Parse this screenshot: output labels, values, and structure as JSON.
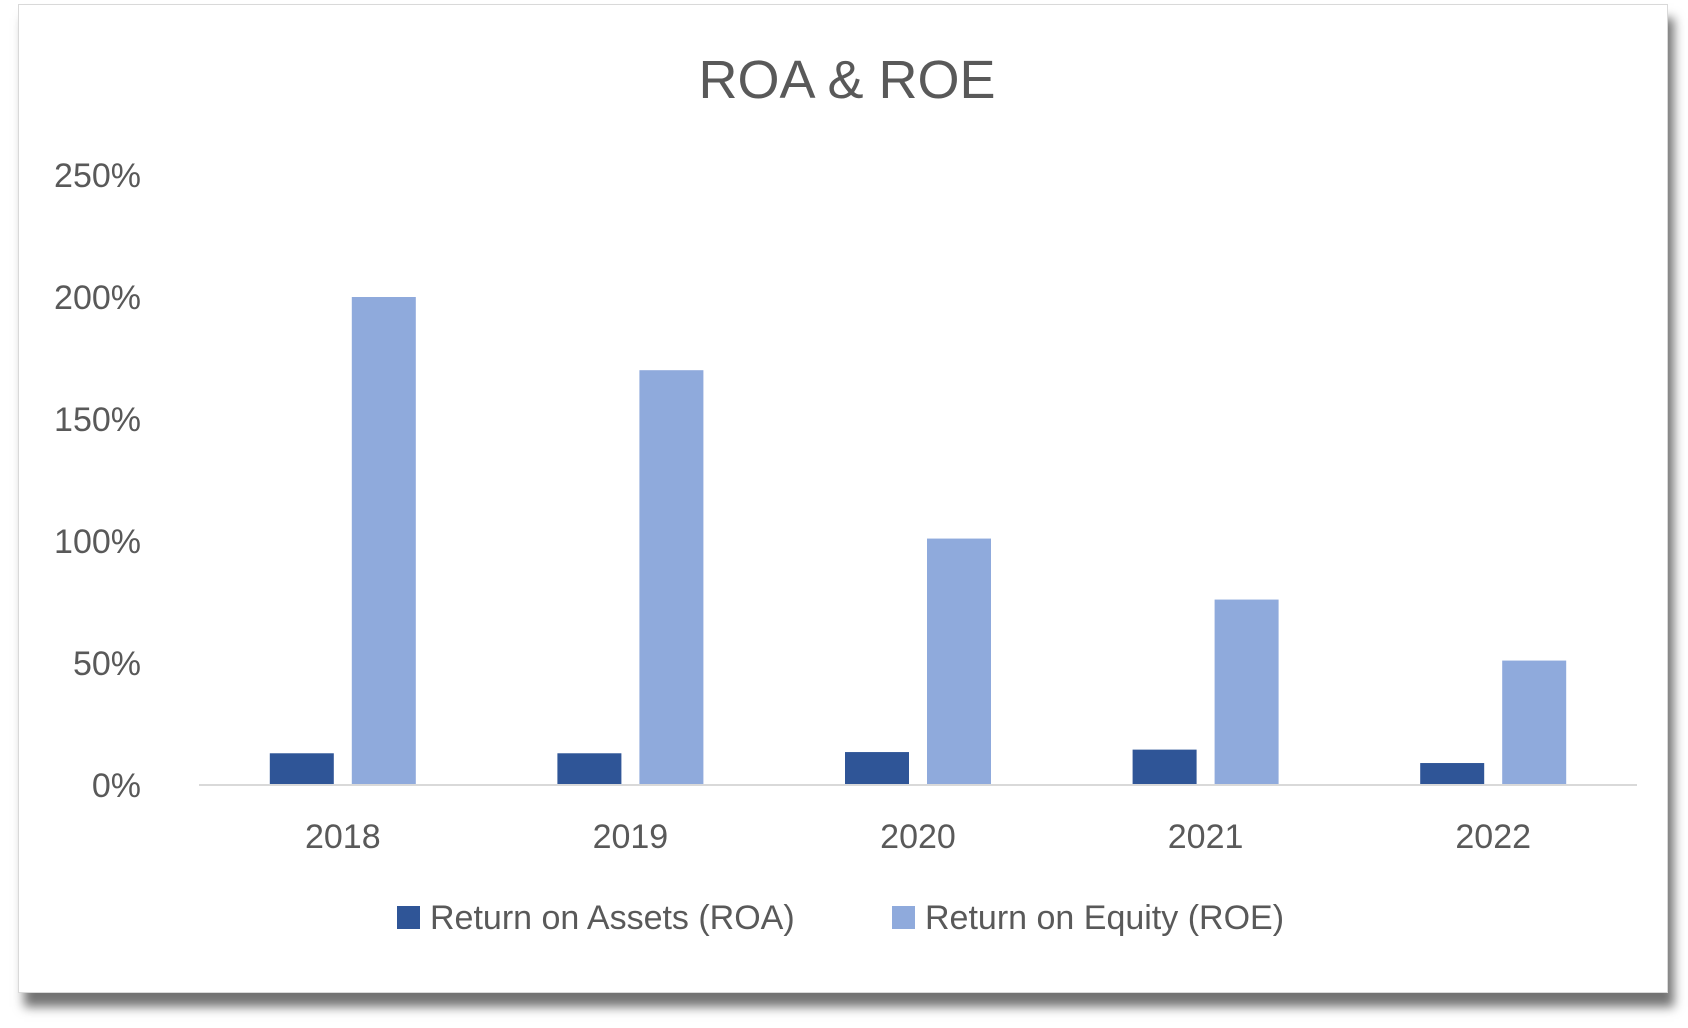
{
  "chart_data": {
    "type": "bar",
    "title": "ROA & ROE",
    "xlabel": "",
    "ylabel": "",
    "categories": [
      "2018",
      "2019",
      "2020",
      "2021",
      "2022"
    ],
    "series": [
      {
        "name": "Return on Assets (ROA)",
        "values": [
          13,
          13,
          13.5,
          14.5,
          9
        ],
        "color": "#2F5597"
      },
      {
        "name": "Return on Equity (ROE)",
        "values": [
          200,
          170,
          101,
          76,
          51
        ],
        "color": "#8FAADC"
      }
    ],
    "ylim": [
      0,
      250
    ],
    "yticks": [
      0,
      50,
      100,
      150,
      200,
      250
    ],
    "ytick_labels": [
      "0%",
      "50%",
      "100%",
      "150%",
      "200%",
      "250%"
    ],
    "grid": false,
    "legend_position": "bottom",
    "axis_color": "#d9d9d9",
    "text_color": "#595959"
  }
}
